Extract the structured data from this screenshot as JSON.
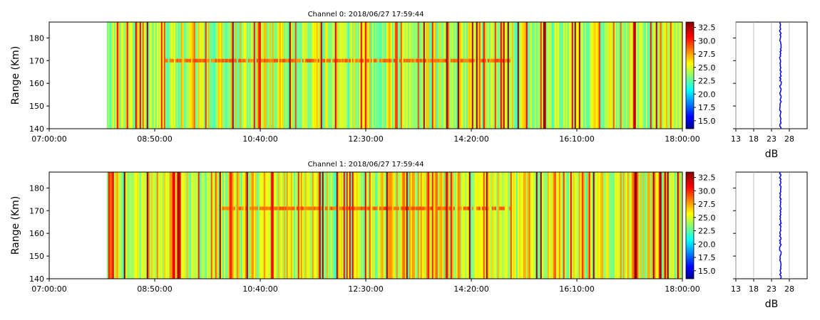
{
  "chart_data": [
    {
      "type": "heatmap",
      "title": "Channel 0: 2018/06/27 17:59:44",
      "xlabel": "",
      "ylabel": "Range (Km)",
      "x_ticks": [
        "07:00:00",
        "08:50:00",
        "10:40:00",
        "12:30:00",
        "14:20:00",
        "16:10:00",
        "18:00:00"
      ],
      "xlim": [
        "07:00:00",
        "18:00:00"
      ],
      "y_ticks": [
        140,
        150,
        160,
        170,
        180
      ],
      "ylim": [
        140,
        187
      ],
      "data_start": "08:00:00",
      "colorbar": {
        "colormap": "jet",
        "range": [
          13.5,
          33.5
        ],
        "ticks": [
          "15.0",
          "17.5",
          "20.0",
          "22.5",
          "25.0",
          "27.5",
          "30.0",
          "32.5"
        ]
      },
      "echo_layer": {
        "range_km": 170,
        "start": "09:00:00",
        "end": "15:00:00",
        "intensity_db": 29
      },
      "background_db": 25,
      "profile": {
        "xlabel": "dB",
        "x_ticks": [
          13,
          18,
          23,
          28
        ],
        "xlim": [
          13,
          33
        ],
        "value_db": 25.5,
        "color": "#0000ff"
      }
    },
    {
      "type": "heatmap",
      "title": "Channel 1: 2018/06/27 17:59:44",
      "xlabel": "",
      "ylabel": "Range (Km)",
      "x_ticks": [
        "07:00:00",
        "08:50:00",
        "10:40:00",
        "12:30:00",
        "14:20:00",
        "16:10:00",
        "18:00:00"
      ],
      "xlim": [
        "07:00:00",
        "18:00:00"
      ],
      "y_ticks": [
        140,
        150,
        160,
        170,
        180
      ],
      "ylim": [
        140,
        187
      ],
      "data_start": "08:00:00",
      "colorbar": {
        "colormap": "jet",
        "range": [
          13.5,
          33.5
        ],
        "ticks": [
          "15.0",
          "17.5",
          "20.0",
          "22.5",
          "25.0",
          "27.5",
          "30.0",
          "32.5"
        ]
      },
      "echo_layer": {
        "range_km": 171,
        "start": "10:00:00",
        "end": "15:00:00",
        "intensity_db": 29
      },
      "background_db": 26,
      "profile": {
        "xlabel": "dB",
        "x_ticks": [
          13,
          18,
          23,
          28
        ],
        "xlim": [
          13,
          33
        ],
        "value_db": 25.5,
        "color": "#0000ff"
      }
    }
  ]
}
